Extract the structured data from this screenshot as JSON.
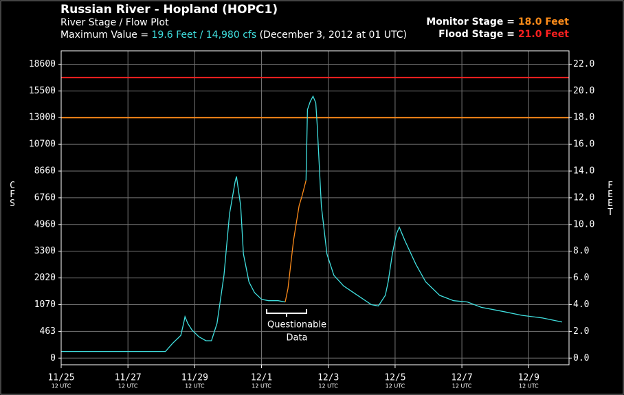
{
  "chart_data": {
    "type": "line",
    "title": "Russian River - Hopland (HOPC1)",
    "subtitle": "River Stage / Flow Plot",
    "max_label": "Maximum Value =",
    "max_value": "19.6 Feet / 14,980 cfs",
    "max_time": "(December 3, 2012 at 01 UTC)",
    "thresholds": [
      {
        "label": "Monitor Stage =",
        "value": 18,
        "value_label": "18.0 Feet",
        "color": "#ff8c1a"
      },
      {
        "label": "Flood Stage =",
        "value": 21,
        "value_label": "21.0 Feet",
        "color": "#ff2020"
      }
    ],
    "ylabel": "CFS",
    "y2label": "FEET",
    "annotation": [
      "Questionable",
      "Data"
    ],
    "x": [
      "2012-11-25T12:00Z",
      "2012-11-28T15:00Z",
      "2012-11-28T20:00Z",
      "2012-11-29T00:00Z",
      "2012-11-29T02:00Z",
      "2012-11-29T04:00Z",
      "2012-11-29T05:00Z",
      "2012-11-29T07:00Z",
      "2012-11-29T10:00Z",
      "2012-11-29T15:00Z",
      "2012-11-29T20:00Z",
      "2012-11-30T00:00Z",
      "2012-11-30T04:00Z",
      "2012-11-30T09:00Z",
      "2012-11-30T13:00Z",
      "2012-11-30T17:00Z",
      "2012-11-30T18:00Z",
      "2012-11-30T21:00Z",
      "2012-11-30T23:00Z",
      "2012-12-01T03:00Z",
      "2012-12-01T07:00Z",
      "2012-12-01T12:00Z",
      "2012-12-01T17:00Z",
      "2012-12-02T00:00Z",
      "2012-12-02T05:00Z",
      "2012-12-02T07:00Z",
      "2012-12-02T11:00Z",
      "2012-12-02T15:00Z",
      "2012-12-02T17:00Z",
      "2012-12-02T20:00Z",
      "2012-12-02T21:00Z",
      "2012-12-02T23:00Z",
      "2012-12-03T01:00Z",
      "2012-12-03T03:00Z",
      "2012-12-03T04:00Z",
      "2012-12-03T07:00Z",
      "2012-12-03T11:00Z",
      "2012-12-03T16:00Z",
      "2012-12-03T23:00Z",
      "2012-12-04T09:00Z",
      "2012-12-04T19:00Z",
      "2012-12-05T00:00Z",
      "2012-12-05T05:00Z",
      "2012-12-05T07:00Z",
      "2012-12-05T10:00Z",
      "2012-12-05T13:00Z",
      "2012-12-05T15:00Z",
      "2012-12-05T19:00Z",
      "2012-12-06T03:00Z",
      "2012-12-06T10:00Z",
      "2012-12-06T20:00Z",
      "2012-12-07T06:00Z",
      "2012-12-07T16:00Z",
      "2012-12-08T02:00Z",
      "2012-12-08T17:00Z",
      "2012-12-09T07:00Z",
      "2012-12-09T22:00Z",
      "2012-12-10T12:00Z"
    ],
    "series": [
      {
        "color": "#40e0e0",
        "axis": "y2",
        "values": [
          0.5,
          0.5,
          1.1,
          1.5,
          1.7,
          2.6,
          3.1,
          2.6,
          2.1,
          1.6,
          1.3,
          1.3,
          2.6,
          6.2,
          10.8,
          13.2,
          13.6,
          11.4,
          7.8,
          5.7,
          4.9,
          4.4,
          4.3,
          4.3,
          4.2,
          null,
          null,
          null,
          null,
          13.3,
          18.6,
          19.2,
          19.6,
          19.1,
          17.5,
          11.4,
          7.8,
          6.2,
          5.4,
          4.7,
          4.0,
          3.9,
          4.7,
          5.7,
          7.8,
          9.3,
          9.8,
          8.8,
          7.0,
          5.7,
          4.7,
          4.3,
          4.2,
          3.8,
          3.5,
          3.2,
          3.0,
          2.7
        ]
      },
      {
        "color": "#ff8c1a",
        "axis": "y2",
        "values": [
          null,
          null,
          null,
          null,
          null,
          null,
          null,
          null,
          null,
          null,
          null,
          null,
          null,
          null,
          null,
          null,
          null,
          null,
          null,
          null,
          null,
          null,
          null,
          null,
          4.2,
          5.2,
          8.8,
          11.4,
          12.1,
          13.3,
          null,
          null,
          null,
          null,
          null,
          null,
          null,
          null,
          null,
          null,
          null,
          null,
          null,
          null,
          null,
          null,
          null,
          null,
          null,
          null,
          null,
          null,
          null,
          null,
          null,
          null,
          null,
          null
        ]
      }
    ],
    "xlim": [
      "2012-11-25T12:00Z",
      "2012-12-10T17:00Z"
    ],
    "xticks": [
      {
        "value": "2012-11-25T12:00Z",
        "label": "11/25"
      },
      {
        "value": "2012-11-27T12:00Z",
        "label": "11/27"
      },
      {
        "value": "2012-11-29T12:00Z",
        "label": "11/29"
      },
      {
        "value": "2012-12-01T12:00Z",
        "label": "12/1"
      },
      {
        "value": "2012-12-03T12:00Z",
        "label": "12/3"
      },
      {
        "value": "2012-12-05T12:00Z",
        "label": "12/5"
      },
      {
        "value": "2012-12-07T12:00Z",
        "label": "12/7"
      },
      {
        "value": "2012-12-09T12:00Z",
        "label": "12/9"
      }
    ],
    "xtick_sublabel": "12 UTC",
    "yticks": [
      0,
      463,
      1070,
      2020,
      3300,
      4960,
      6760,
      8660,
      10700,
      13000,
      15500,
      18600
    ],
    "y2lim": [
      -0.5,
      23
    ],
    "y2ticks": [
      {
        "value": 0,
        "label": "0.0"
      },
      {
        "value": 2,
        "label": "2.0"
      },
      {
        "value": 4,
        "label": "4.0"
      },
      {
        "value": 6,
        "label": "6.0"
      },
      {
        "value": 8,
        "label": "8.0"
      },
      {
        "value": 10,
        "label": "10.0"
      },
      {
        "value": 12,
        "label": "12.0"
      },
      {
        "value": 14,
        "label": "14.0"
      },
      {
        "value": 16,
        "label": "16.0"
      },
      {
        "value": 18,
        "label": "18.0"
      },
      {
        "value": 20,
        "label": "20.0"
      },
      {
        "value": 22,
        "label": "22.0"
      }
    ],
    "grid": true
  }
}
